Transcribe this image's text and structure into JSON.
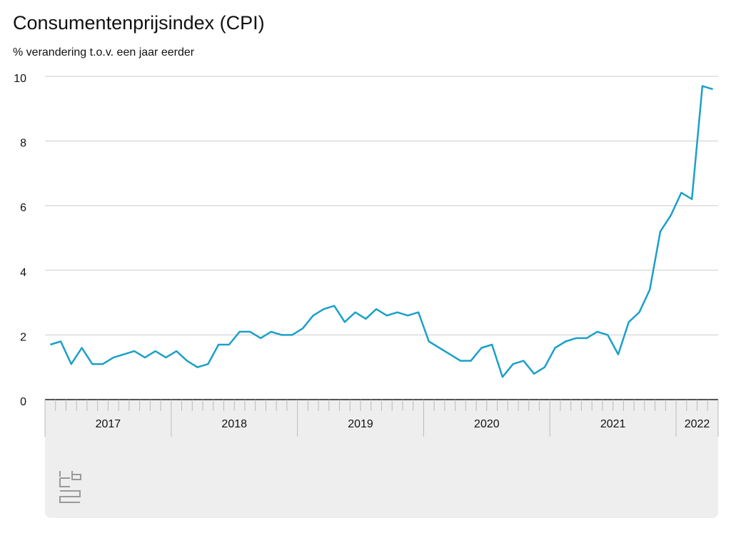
{
  "chart_data": {
    "type": "line",
    "title": "Consumentenprijsindex (CPI)",
    "subtitle": "% verandering t.o.v. een jaar eerder",
    "categories": [
      "2017",
      "2018",
      "2019",
      "2020",
      "2021",
      "2022"
    ],
    "values": [
      [
        1.7,
        1.8,
        1.1,
        1.6,
        1.1,
        1.1,
        1.3,
        1.4,
        1.5,
        1.3,
        1.5,
        1.3
      ],
      [
        1.5,
        1.2,
        1.0,
        1.1,
        1.7,
        1.7,
        2.1,
        2.1,
        1.9,
        2.1,
        2.0,
        2.0
      ],
      [
        2.2,
        2.6,
        2.8,
        2.9,
        2.4,
        2.7,
        2.5,
        2.8,
        2.6,
        2.7,
        2.6,
        2.7
      ],
      [
        1.8,
        1.6,
        1.4,
        1.2,
        1.2,
        1.6,
        1.7,
        0.7,
        1.1,
        1.2,
        0.8,
        1.0
      ],
      [
        1.6,
        1.8,
        1.9,
        1.9,
        2.1,
        2.0,
        1.4,
        2.4,
        2.7,
        3.4,
        5.2,
        5.7
      ],
      [
        6.4,
        6.2,
        9.7,
        9.6
      ]
    ],
    "color": "#1ba0c8",
    "ylim": [
      0,
      10
    ],
    "yticks": [
      0,
      2,
      4,
      6,
      8,
      10
    ],
    "grid": true
  }
}
